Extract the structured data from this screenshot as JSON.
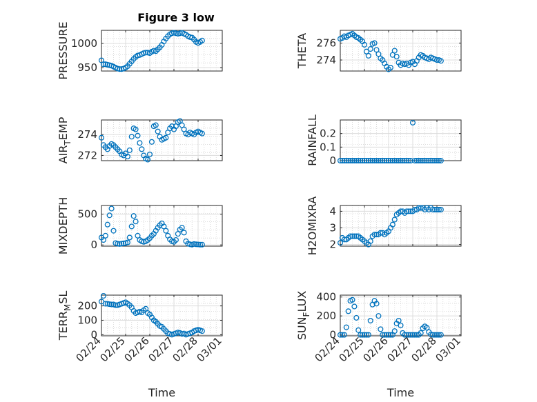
{
  "figure": {
    "title": "Figure 3 low",
    "marker_color": "#0072BD",
    "grid": "minor dotted grid on"
  },
  "chart_data": [
    {
      "type": "scatter",
      "ylabel": "PRESSURE",
      "xlabel": "",
      "ylim": [
        943,
        1027
      ],
      "yticks": [
        950,
        1000
      ],
      "xlim": [
        "02/24",
        "03/01"
      ],
      "xticks": [
        "02/24",
        "02/25",
        "02/26",
        "02/27",
        "02/28",
        "03/01"
      ],
      "x": [
        "02/24 00:00",
        "02/24 02:00",
        "02/24 04:00",
        "02/24 06:00",
        "02/24 08:00",
        "02/24 10:00",
        "02/24 12:00",
        "02/24 14:00",
        "02/24 16:00",
        "02/24 18:00",
        "02/24 20:00",
        "02/24 22:00",
        "02/25 00:00",
        "02/25 02:00",
        "02/25 04:00",
        "02/25 06:00",
        "02/25 08:00",
        "02/25 10:00",
        "02/25 12:00",
        "02/25 14:00",
        "02/25 16:00",
        "02/25 18:00",
        "02/25 20:00",
        "02/25 22:00",
        "02/26 00:00",
        "02/26 02:00",
        "02/26 04:00",
        "02/26 06:00",
        "02/26 08:00",
        "02/26 10:00",
        "02/26 12:00",
        "02/26 14:00",
        "02/26 16:00",
        "02/26 18:00",
        "02/26 20:00",
        "02/26 22:00",
        "02/27 00:00",
        "02/27 02:00",
        "02/27 04:00",
        "02/27 06:00",
        "02/27 08:00",
        "02/27 10:00",
        "02/27 12:00",
        "02/27 14:00",
        "02/27 16:00",
        "02/27 18:00",
        "02/27 20:00",
        "02/27 22:00",
        "02/28 00:00",
        "02/28 02:00",
        "02/28 04:00"
      ],
      "y": [
        965,
        957,
        957,
        956,
        955,
        954,
        952,
        950,
        948,
        947,
        947,
        948,
        950,
        953,
        958,
        963,
        968,
        972,
        975,
        976,
        978,
        980,
        981,
        981,
        980,
        983,
        985,
        984,
        988,
        992,
        997,
        1004,
        1010,
        1015,
        1019,
        1021,
        1022,
        1021,
        1020,
        1021,
        1022,
        1020,
        1018,
        1015,
        1013,
        1012,
        1008,
        1003,
        1001,
        1003,
        1006
      ]
    },
    {
      "type": "scatter",
      "ylabel": "THETA",
      "xlabel": "",
      "ylim": [
        272.7,
        277.5
      ],
      "yticks": [
        274,
        276
      ],
      "xlim": [
        "02/24",
        "03/01"
      ],
      "xticks": [
        "02/24",
        "02/25",
        "02/26",
        "02/27",
        "02/28",
        "03/01"
      ],
      "x": [
        "02/24 00:00",
        "02/24 02:00",
        "02/24 04:00",
        "02/24 06:00",
        "02/24 08:00",
        "02/24 10:00",
        "02/24 12:00",
        "02/24 14:00",
        "02/24 16:00",
        "02/24 18:00",
        "02/24 20:00",
        "02/24 22:00",
        "02/25 00:00",
        "02/25 02:00",
        "02/25 04:00",
        "02/25 06:00",
        "02/25 08:00",
        "02/25 10:00",
        "02/25 12:00",
        "02/25 14:00",
        "02/25 16:00",
        "02/25 18:00",
        "02/25 20:00",
        "02/25 22:00",
        "02/26 00:00",
        "02/26 02:00",
        "02/26 04:00",
        "02/26 06:00",
        "02/26 08:00",
        "02/26 10:00",
        "02/26 12:00",
        "02/26 14:00",
        "02/26 16:00",
        "02/26 18:00",
        "02/26 20:00",
        "02/26 22:00",
        "02/27 00:00",
        "02/27 02:00",
        "02/27 04:00",
        "02/27 06:00",
        "02/27 08:00",
        "02/27 10:00",
        "02/27 12:00",
        "02/27 14:00",
        "02/27 16:00",
        "02/27 18:00",
        "02/27 20:00",
        "02/27 22:00",
        "02/28 00:00",
        "02/28 02:00",
        "02/28 04:00"
      ],
      "y": [
        276.5,
        276.6,
        276.8,
        276.7,
        276.9,
        277.0,
        277.1,
        276.9,
        276.7,
        276.6,
        276.4,
        276.2,
        275.8,
        275.0,
        274.5,
        275.3,
        275.9,
        276.0,
        275.2,
        274.7,
        274.2,
        274.0,
        273.6,
        273.2,
        272.9,
        273.1,
        274.6,
        275.1,
        274.4,
        273.7,
        273.4,
        273.6,
        273.5,
        273.6,
        273.4,
        273.7,
        273.8,
        273.5,
        273.9,
        274.3,
        274.6,
        274.5,
        274.3,
        274.2,
        274.1,
        274.3,
        274.2,
        274.1,
        274.0,
        274.0,
        273.9
      ]
    },
    {
      "type": "scatter",
      "ylabel": "AIR_TEMP",
      "xlabel": "",
      "ylim": [
        271.5,
        275.4
      ],
      "yticks": [
        272,
        274
      ],
      "xlim": [
        "02/24",
        "03/01"
      ],
      "xticks": [
        "02/24",
        "02/25",
        "02/26",
        "02/27",
        "02/28",
        "03/01"
      ],
      "x": [
        "02/24 00:00",
        "02/24 02:00",
        "02/24 04:00",
        "02/24 06:00",
        "02/24 08:00",
        "02/24 10:00",
        "02/24 12:00",
        "02/24 14:00",
        "02/24 16:00",
        "02/24 18:00",
        "02/24 20:00",
        "02/24 22:00",
        "02/25 00:00",
        "02/25 02:00",
        "02/25 04:00",
        "02/25 06:00",
        "02/25 08:00",
        "02/25 10:00",
        "02/25 12:00",
        "02/25 14:00",
        "02/25 16:00",
        "02/25 18:00",
        "02/25 20:00",
        "02/25 22:00",
        "02/26 00:00",
        "02/26 02:00",
        "02/26 04:00",
        "02/26 06:00",
        "02/26 08:00",
        "02/26 10:00",
        "02/26 12:00",
        "02/26 14:00",
        "02/26 16:00",
        "02/26 18:00",
        "02/26 20:00",
        "02/26 22:00",
        "02/27 00:00",
        "02/27 02:00",
        "02/27 04:00",
        "02/27 06:00",
        "02/27 08:00",
        "02/27 10:00",
        "02/27 12:00",
        "02/27 14:00",
        "02/27 16:00",
        "02/27 18:00",
        "02/27 20:00",
        "02/27 22:00",
        "02/28 00:00",
        "02/28 02:00",
        "02/28 04:00"
      ],
      "y": [
        273.7,
        273.0,
        272.8,
        272.6,
        272.9,
        273.1,
        273.0,
        272.8,
        272.6,
        272.4,
        272.1,
        272.0,
        272.2,
        271.9,
        272.5,
        273.8,
        274.6,
        274.5,
        273.9,
        273.2,
        272.6,
        272.0,
        271.7,
        271.6,
        272.1,
        273.3,
        274.8,
        274.9,
        274.3,
        273.8,
        273.5,
        273.6,
        273.7,
        274.2,
        274.6,
        274.8,
        274.5,
        274.8,
        275.2,
        275.3,
        274.9,
        274.5,
        274.1,
        274.0,
        274.2,
        274.1,
        274.0,
        274.2,
        274.3,
        274.2,
        274.1
      ]
    },
    {
      "type": "scatter",
      "ylabel": "RAINFALL",
      "xlabel": "",
      "ylim": [
        0,
        0.3
      ],
      "yticks": [
        0,
        0.1,
        0.2
      ],
      "xlim": [
        "02/24",
        "03/01"
      ],
      "xticks": [
        "02/24",
        "02/25",
        "02/26",
        "02/27",
        "02/28",
        "03/01"
      ],
      "x": [
        "02/24 00:00",
        "02/24 02:00",
        "02/24 04:00",
        "02/24 06:00",
        "02/24 08:00",
        "02/24 10:00",
        "02/24 12:00",
        "02/24 14:00",
        "02/24 16:00",
        "02/24 18:00",
        "02/24 20:00",
        "02/24 22:00",
        "02/25 00:00",
        "02/25 02:00",
        "02/25 04:00",
        "02/25 06:00",
        "02/25 08:00",
        "02/25 10:00",
        "02/25 12:00",
        "02/25 14:00",
        "02/25 16:00",
        "02/25 18:00",
        "02/25 20:00",
        "02/25 22:00",
        "02/26 00:00",
        "02/26 02:00",
        "02/26 04:00",
        "02/26 06:00",
        "02/26 08:00",
        "02/26 10:00",
        "02/26 12:00",
        "02/26 14:00",
        "02/26 16:00",
        "02/26 18:00",
        "02/26 20:00",
        "02/26 22:00",
        "02/27 00:00",
        "02/27 02:00",
        "02/27 04:00",
        "02/27 06:00",
        "02/27 08:00",
        "02/27 10:00",
        "02/27 12:00",
        "02/27 14:00",
        "02/27 16:00",
        "02/27 18:00",
        "02/27 20:00",
        "02/27 22:00",
        "02/28 00:00",
        "02/28 02:00",
        "02/28 04:00"
      ],
      "y": [
        0,
        0,
        0,
        0,
        0,
        0,
        0,
        0,
        0,
        0,
        0,
        0,
        0,
        0,
        0,
        0,
        0,
        0,
        0,
        0,
        0,
        0,
        0,
        0,
        0,
        0,
        0,
        0,
        0,
        0,
        0,
        0,
        0,
        0,
        0,
        0,
        0.28,
        0,
        0,
        0,
        0,
        0,
        0,
        0,
        0,
        0,
        0,
        0,
        0,
        0,
        0
      ]
    },
    {
      "type": "scatter",
      "ylabel": "MIXDEPTH",
      "xlabel": "",
      "ylim": [
        -20,
        640
      ],
      "yticks": [
        0,
        500
      ],
      "xlim": [
        "02/24",
        "03/01"
      ],
      "xticks": [
        "02/24",
        "02/25",
        "02/26",
        "02/27",
        "02/28",
        "03/01"
      ],
      "x": [
        "02/24 00:00",
        "02/24 02:00",
        "02/24 04:00",
        "02/24 06:00",
        "02/24 08:00",
        "02/24 10:00",
        "02/24 12:00",
        "02/24 14:00",
        "02/24 16:00",
        "02/24 18:00",
        "02/24 20:00",
        "02/24 22:00",
        "02/25 00:00",
        "02/25 02:00",
        "02/25 04:00",
        "02/25 06:00",
        "02/25 08:00",
        "02/25 10:00",
        "02/25 12:00",
        "02/25 14:00",
        "02/25 16:00",
        "02/25 18:00",
        "02/25 20:00",
        "02/25 22:00",
        "02/26 00:00",
        "02/26 02:00",
        "02/26 04:00",
        "02/26 06:00",
        "02/26 08:00",
        "02/26 10:00",
        "02/26 12:00",
        "02/26 14:00",
        "02/26 16:00",
        "02/26 18:00",
        "02/26 20:00",
        "02/26 22:00",
        "02/27 00:00",
        "02/27 02:00",
        "02/27 04:00",
        "02/27 06:00",
        "02/27 08:00",
        "02/27 10:00",
        "02/27 12:00",
        "02/27 14:00",
        "02/27 16:00",
        "02/27 18:00",
        "02/27 20:00",
        "02/27 22:00",
        "02/28 00:00",
        "02/28 02:00",
        "02/28 04:00"
      ],
      "y": [
        120,
        80,
        150,
        330,
        480,
        590,
        230,
        30,
        20,
        15,
        20,
        25,
        30,
        40,
        120,
        300,
        470,
        380,
        150,
        80,
        60,
        50,
        60,
        80,
        110,
        150,
        180,
        230,
        280,
        320,
        350,
        300,
        230,
        150,
        90,
        60,
        50,
        80,
        180,
        250,
        280,
        200,
        60,
        20,
        10,
        5,
        15,
        10,
        8,
        5,
        5
      ]
    },
    {
      "type": "scatter",
      "ylabel": "H2OMIXRA",
      "xlabel": "",
      "ylim": [
        1.9,
        4.35
      ],
      "yticks": [
        2,
        3,
        4
      ],
      "xlim": [
        "02/24",
        "03/01"
      ],
      "xticks": [
        "02/24",
        "02/25",
        "02/26",
        "02/27",
        "02/28",
        "03/01"
      ],
      "x": [
        "02/24 00:00",
        "02/24 02:00",
        "02/24 04:00",
        "02/24 06:00",
        "02/24 08:00",
        "02/24 10:00",
        "02/24 12:00",
        "02/24 14:00",
        "02/24 16:00",
        "02/24 18:00",
        "02/24 20:00",
        "02/24 22:00",
        "02/25 00:00",
        "02/25 02:00",
        "02/25 04:00",
        "02/25 06:00",
        "02/25 08:00",
        "02/25 10:00",
        "02/25 12:00",
        "02/25 14:00",
        "02/25 16:00",
        "02/25 18:00",
        "02/25 20:00",
        "02/25 22:00",
        "02/26 00:00",
        "02/26 02:00",
        "02/26 04:00",
        "02/26 06:00",
        "02/26 08:00",
        "02/26 10:00",
        "02/26 12:00",
        "02/26 14:00",
        "02/26 16:00",
        "02/26 18:00",
        "02/26 20:00",
        "02/26 22:00",
        "02/27 00:00",
        "02/27 02:00",
        "02/27 04:00",
        "02/27 06:00",
        "02/27 08:00",
        "02/27 10:00",
        "02/27 12:00",
        "02/27 14:00",
        "02/27 16:00",
        "02/27 18:00",
        "02/27 20:00",
        "02/27 22:00",
        "02/28 00:00",
        "02/28 02:00",
        "02/28 04:00"
      ],
      "y": [
        2.1,
        2.4,
        2.3,
        2.3,
        2.4,
        2.5,
        2.5,
        2.5,
        2.5,
        2.5,
        2.4,
        2.3,
        2.2,
        2.1,
        2.0,
        2.2,
        2.5,
        2.6,
        2.6,
        2.6,
        2.7,
        2.7,
        2.6,
        2.7,
        2.8,
        3.0,
        3.2,
        3.5,
        3.8,
        3.9,
        4.0,
        4.0,
        3.9,
        4.0,
        4.0,
        4.0,
        4.0,
        4.1,
        4.1,
        4.2,
        4.2,
        4.2,
        4.1,
        4.2,
        4.1,
        4.2,
        4.1,
        4.1,
        4.1,
        4.1,
        4.1
      ]
    },
    {
      "type": "scatter",
      "ylabel": "TERR_MSL",
      "xlabel": "Time",
      "ylim": [
        -8,
        275
      ],
      "yticks": [
        0,
        100,
        200
      ],
      "xlim": [
        "02/24",
        "03/01"
      ],
      "xticks": [
        "02/24",
        "02/25",
        "02/26",
        "02/27",
        "02/28",
        "03/01"
      ],
      "x": [
        "02/24 00:00",
        "02/24 02:00",
        "02/24 04:00",
        "02/24 06:00",
        "02/24 08:00",
        "02/24 10:00",
        "02/24 12:00",
        "02/24 14:00",
        "02/24 16:00",
        "02/24 18:00",
        "02/24 20:00",
        "02/24 22:00",
        "02/25 00:00",
        "02/25 02:00",
        "02/25 04:00",
        "02/25 06:00",
        "02/25 08:00",
        "02/25 10:00",
        "02/25 12:00",
        "02/25 14:00",
        "02/25 16:00",
        "02/25 18:00",
        "02/25 20:00",
        "02/25 22:00",
        "02/26 00:00",
        "02/26 02:00",
        "02/26 04:00",
        "02/26 06:00",
        "02/26 08:00",
        "02/26 10:00",
        "02/26 12:00",
        "02/26 14:00",
        "02/26 16:00",
        "02/26 18:00",
        "02/26 20:00",
        "02/26 22:00",
        "02/27 00:00",
        "02/27 02:00",
        "02/27 04:00",
        "02/27 06:00",
        "02/27 08:00",
        "02/27 10:00",
        "02/27 12:00",
        "02/27 14:00",
        "02/27 16:00",
        "02/27 18:00",
        "02/27 20:00",
        "02/27 22:00",
        "02/28 00:00",
        "02/28 02:00",
        "02/28 04:00"
      ],
      "y": [
        230,
        270,
        215,
        215,
        212,
        210,
        210,
        205,
        205,
        210,
        215,
        220,
        225,
        215,
        205,
        190,
        165,
        150,
        155,
        160,
        155,
        170,
        180,
        150,
        140,
        120,
        100,
        90,
        75,
        60,
        55,
        40,
        25,
        10,
        5,
        0,
        5,
        10,
        15,
        12,
        5,
        8,
        0,
        5,
        10,
        15,
        25,
        30,
        35,
        30,
        25
      ]
    },
    {
      "type": "scatter",
      "ylabel": "SUN_FLUX",
      "xlabel": "Time",
      "ylim": [
        -10,
        420
      ],
      "yticks": [
        0,
        200,
        400
      ],
      "xlim": [
        "02/24",
        "03/01"
      ],
      "xticks": [
        "02/24",
        "02/25",
        "02/26",
        "02/27",
        "02/28",
        "03/01"
      ],
      "x": [
        "02/24 00:00",
        "02/24 02:00",
        "02/24 04:00",
        "02/24 06:00",
        "02/24 08:00",
        "02/24 10:00",
        "02/24 12:00",
        "02/24 14:00",
        "02/24 16:00",
        "02/24 18:00",
        "02/24 20:00",
        "02/24 22:00",
        "02/25 00:00",
        "02/25 02:00",
        "02/25 04:00",
        "02/25 06:00",
        "02/25 08:00",
        "02/25 10:00",
        "02/25 12:00",
        "02/25 14:00",
        "02/25 16:00",
        "02/25 18:00",
        "02/25 20:00",
        "02/25 22:00",
        "02/26 00:00",
        "02/26 02:00",
        "02/26 04:00",
        "02/26 06:00",
        "02/26 08:00",
        "02/26 10:00",
        "02/26 12:00",
        "02/26 14:00",
        "02/26 16:00",
        "02/26 18:00",
        "02/26 20:00",
        "02/26 22:00",
        "02/27 00:00",
        "02/27 02:00",
        "02/27 04:00",
        "02/27 06:00",
        "02/27 08:00",
        "02/27 10:00",
        "02/27 12:00",
        "02/27 14:00",
        "02/27 16:00",
        "02/27 18:00",
        "02/27 20:00",
        "02/27 22:00",
        "02/28 00:00",
        "02/28 02:00",
        "02/28 04:00"
      ],
      "y": [
        0,
        0,
        0,
        80,
        250,
        360,
        370,
        300,
        180,
        50,
        0,
        0,
        0,
        0,
        0,
        150,
        320,
        360,
        330,
        200,
        60,
        0,
        0,
        0,
        0,
        0,
        0,
        40,
        120,
        150,
        100,
        20,
        0,
        0,
        0,
        0,
        0,
        0,
        0,
        0,
        20,
        70,
        90,
        75,
        30,
        5,
        0,
        0,
        0,
        0,
        0
      ]
    }
  ]
}
